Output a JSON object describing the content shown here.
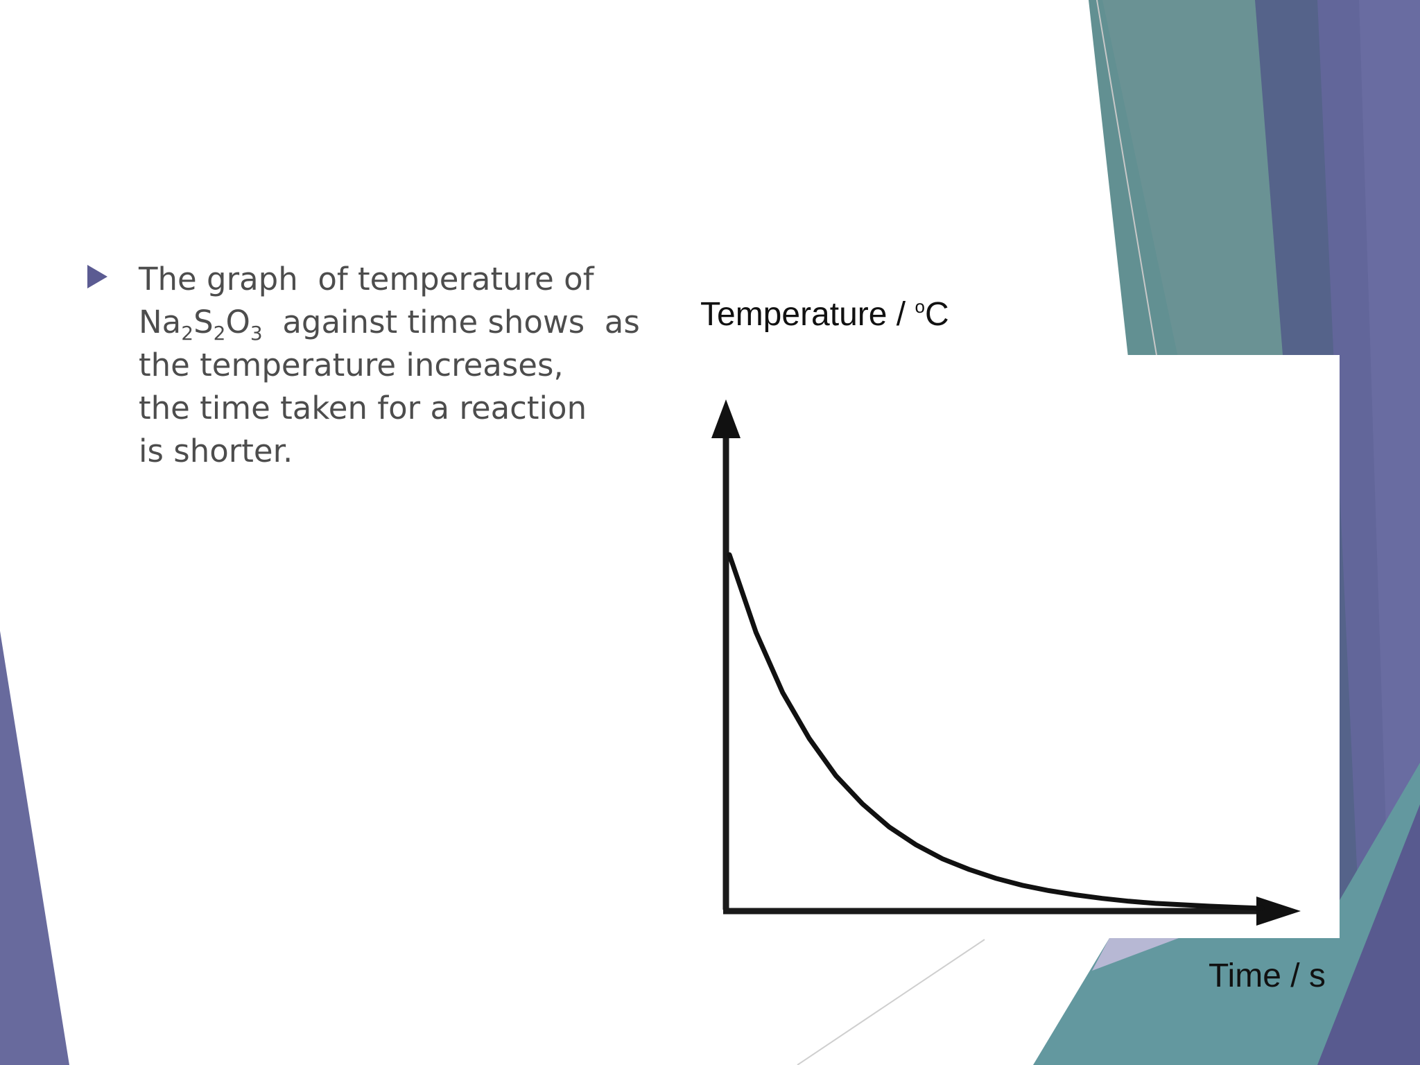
{
  "slide": {
    "bullet_text": {
      "line1": "The graph  of temperature of",
      "line2_formula_parts": [
        "Na",
        "2",
        "S",
        "2",
        "O",
        "3"
      ],
      "line2_rest": "  against time shows  as",
      "line3": "the temperature increases,",
      "line4": "the time taken for a reaction",
      "line5": "is shorter."
    },
    "theme_colors": {
      "teal": "#4f8a8b",
      "slate": "#5a6b8c",
      "purple": "#5e5f94",
      "bullet": "#5b5b92",
      "text": "#4d4d4d"
    }
  },
  "chart_data": {
    "type": "line",
    "ylabel_parts": {
      "text": "Temperature / ",
      "superscript": "o",
      "unit": "C"
    },
    "xlabel": "Time / s",
    "grid": false,
    "series": [
      {
        "x": [
          0,
          0.05,
          0.1,
          0.15,
          0.2,
          0.25,
          0.3,
          0.35,
          0.4,
          0.45,
          0.5,
          0.55,
          0.6,
          0.65,
          0.7,
          0.75,
          0.8,
          0.85,
          0.9,
          0.95,
          1.0
        ],
        "y": [
          1.0,
          0.78,
          0.61,
          0.48,
          0.375,
          0.295,
          0.23,
          0.18,
          0.14,
          0.11,
          0.085,
          0.065,
          0.05,
          0.038,
          0.028,
          0.02,
          0.014,
          0.01,
          0.006,
          0.003,
          0.0
        ]
      }
    ]
  }
}
